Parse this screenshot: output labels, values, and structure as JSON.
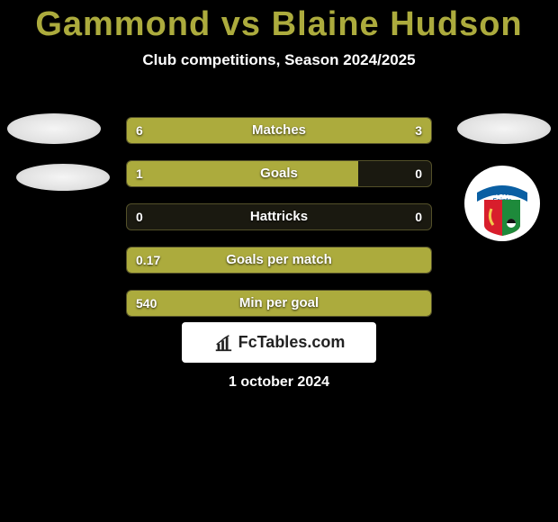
{
  "header": {
    "title_left": "Gammond",
    "title_vs": " vs ",
    "title_right": "Blaine Hudson",
    "subtitle": "Club competitions, Season 2024/2025",
    "title_color_left": "#acab3d",
    "title_color_right": "#acab3d",
    "title_vs_color": "#acab3d"
  },
  "stats": {
    "bar_fill_color": "#acab3d",
    "bar_border_color": "#535029",
    "bar_bg_color": "#1a1910",
    "rows": [
      {
        "label": "Matches",
        "left_value": "6",
        "right_value": "3",
        "left_fill_pct": 66.6,
        "right_fill_pct": 33.3
      },
      {
        "label": "Goals",
        "left_value": "1",
        "right_value": "0",
        "left_fill_pct": 76,
        "right_fill_pct": 0
      },
      {
        "label": "Hattricks",
        "left_value": "0",
        "right_value": "0",
        "left_fill_pct": 0,
        "right_fill_pct": 0
      },
      {
        "label": "Goals per match",
        "left_value": "0.17",
        "right_value": "",
        "left_fill_pct": 100,
        "right_fill_pct": 0
      },
      {
        "label": "Min per goal",
        "left_value": "540",
        "right_value": "",
        "left_fill_pct": 100,
        "right_fill_pct": 0
      }
    ]
  },
  "club_right": {
    "name": "The New Saints",
    "banner_text": "The New Saints"
  },
  "brand": {
    "text": "FcTables.com"
  },
  "footer": {
    "date": "1 october 2024"
  }
}
